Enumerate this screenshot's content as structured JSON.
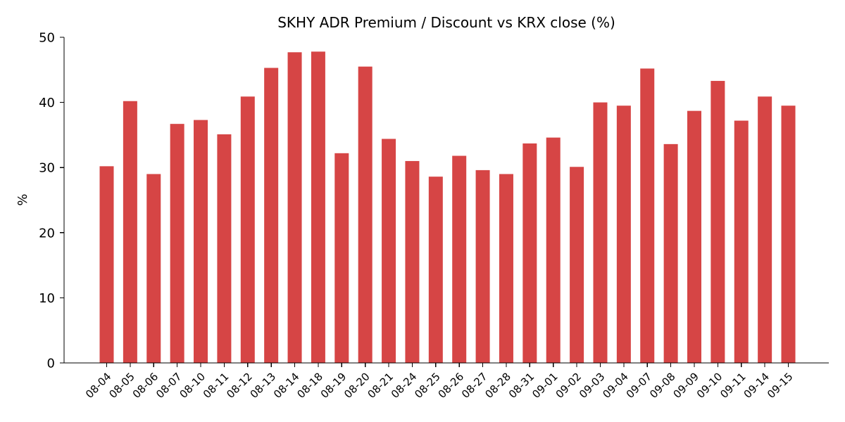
{
  "chart_data": {
    "type": "bar",
    "title": "SKHY ADR Premium / Discount vs KRX close (%)",
    "xlabel": "",
    "ylabel": "%",
    "ylim": [
      0,
      50
    ],
    "yticks": [
      0,
      10,
      20,
      30,
      40,
      50
    ],
    "grid": false,
    "bar_color": "#d64545",
    "categories": [
      "08-04",
      "08-05",
      "08-06",
      "08-07",
      "08-10",
      "08-11",
      "08-12",
      "08-13",
      "08-14",
      "08-18",
      "08-19",
      "08-20",
      "08-21",
      "08-24",
      "08-25",
      "08-26",
      "08-27",
      "08-28",
      "08-31",
      "09-01",
      "09-02",
      "09-03",
      "09-04",
      "09-07",
      "09-08",
      "09-09",
      "09-10",
      "09-11",
      "09-14",
      "09-15"
    ],
    "values": [
      30.2,
      40.2,
      29.0,
      36.7,
      37.3,
      35.1,
      40.9,
      45.3,
      47.7,
      47.8,
      32.2,
      45.5,
      34.4,
      31.0,
      28.6,
      31.8,
      29.6,
      29.0,
      33.7,
      34.6,
      30.1,
      40.0,
      39.5,
      45.2,
      33.6,
      38.7,
      43.3,
      37.2,
      40.9,
      39.5
    ]
  }
}
